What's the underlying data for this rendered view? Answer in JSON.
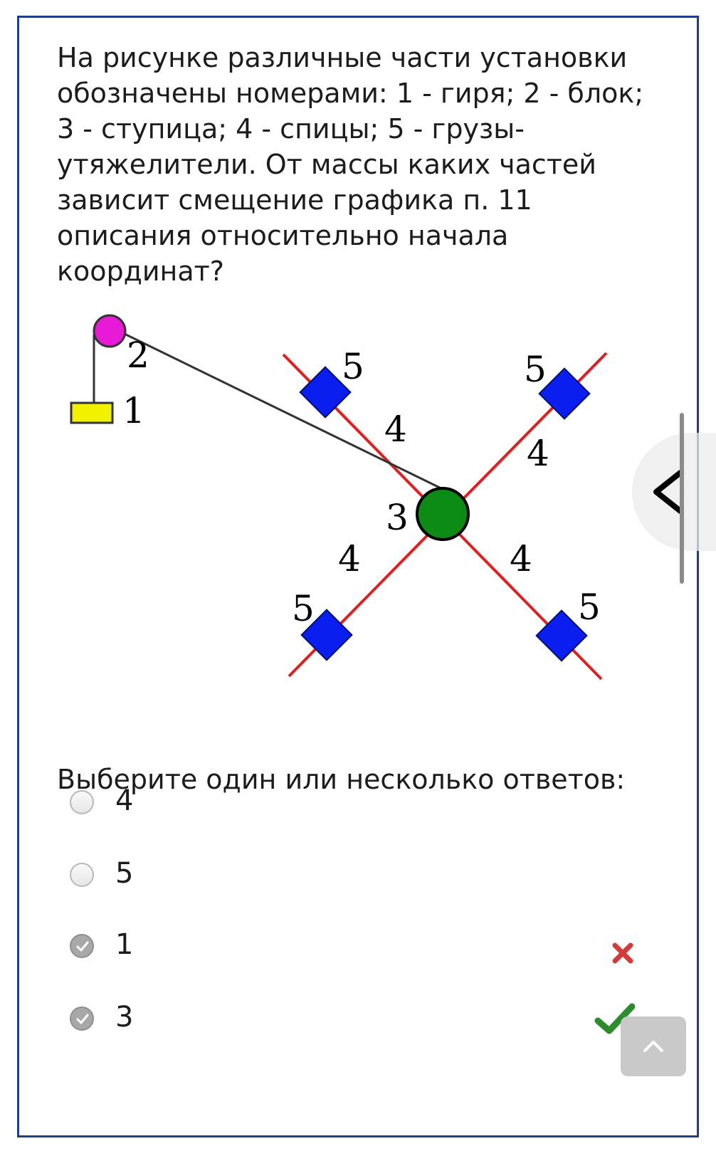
{
  "question": {
    "text": "На рисунке различные части установки обозначены  номерами: 1 - гиря; 2 - блок; 3 - ступица; 4 - спицы; 5 - грузы-утяжелители. От массы каких частей зависит смещение графика п. 11 описания относительно начала координат?"
  },
  "figure": {
    "labels": {
      "weight": "1",
      "pulley": "2",
      "hub": "3",
      "spoke_upper_left": "4",
      "spoke_upper_right": "4",
      "spoke_lower_left": "4",
      "spoke_lower_right": "4",
      "load_upper_left": "5",
      "load_upper_right": "5",
      "load_lower_left": "5",
      "load_lower_right": "5"
    },
    "colors": {
      "pulley": "#e81ad8",
      "weight": "#f2f200",
      "hub": "#0b8a14",
      "spokes": "#e02020",
      "loads": "#0a1ef0",
      "thread": "#333333"
    }
  },
  "answers": {
    "prompt": "Выберите один или несколько ответов:",
    "options": [
      {
        "label": "4",
        "checked": false,
        "mark": ""
      },
      {
        "label": "5",
        "checked": false,
        "mark": ""
      },
      {
        "label": "1",
        "checked": true,
        "mark": "incorrect"
      },
      {
        "label": "3",
        "checked": true,
        "mark": "correct"
      }
    ]
  },
  "ui": {
    "side_tab_icon": "chevron-left-icon",
    "back_to_top_icon": "chevron-up-icon"
  }
}
